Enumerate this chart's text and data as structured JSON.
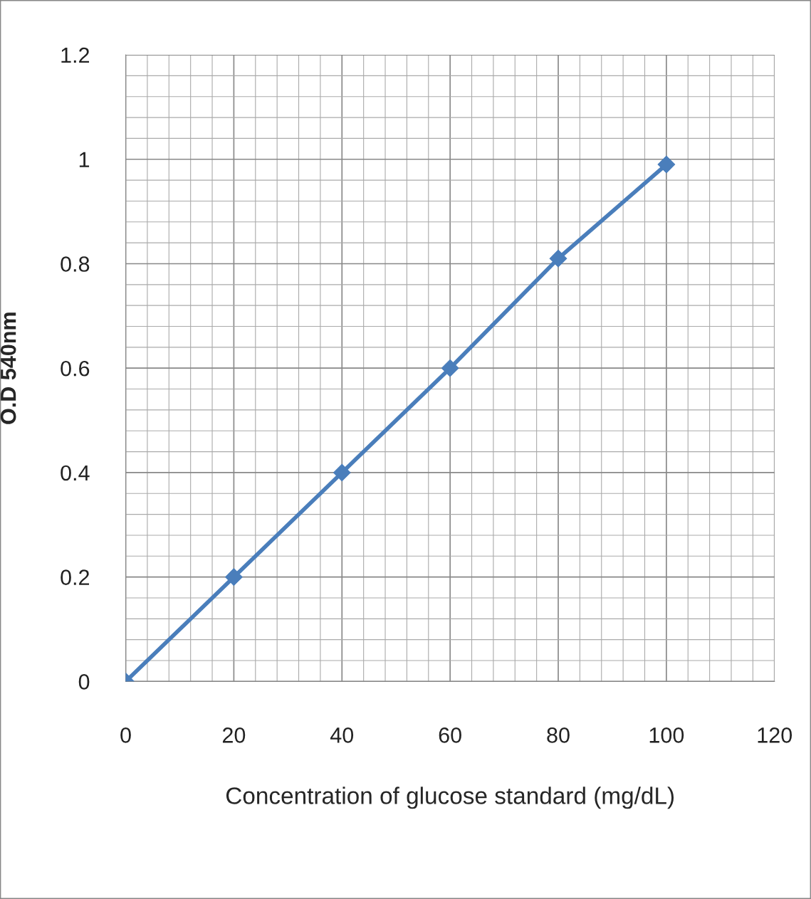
{
  "chart_data": {
    "type": "line",
    "xlabel": "Concentration of glucose standard (mg/dL)",
    "ylabel": "O.D 540nm",
    "x": [
      0,
      20,
      40,
      60,
      80,
      100
    ],
    "series": [
      {
        "color": "#4a7ebb",
        "values": [
          0,
          0.2,
          0.4,
          0.6,
          0.81,
          0.99
        ]
      }
    ],
    "xlim": [
      0,
      120
    ],
    "xticks": [
      0,
      20,
      40,
      60,
      80,
      100,
      120
    ],
    "ylim": [
      0,
      1.2
    ],
    "yticks": [
      0,
      0.2,
      0.4,
      0.6,
      0.8,
      1,
      1.2
    ],
    "grid": true,
    "marker": "diamond",
    "line_style": "solid",
    "legend": false
  }
}
